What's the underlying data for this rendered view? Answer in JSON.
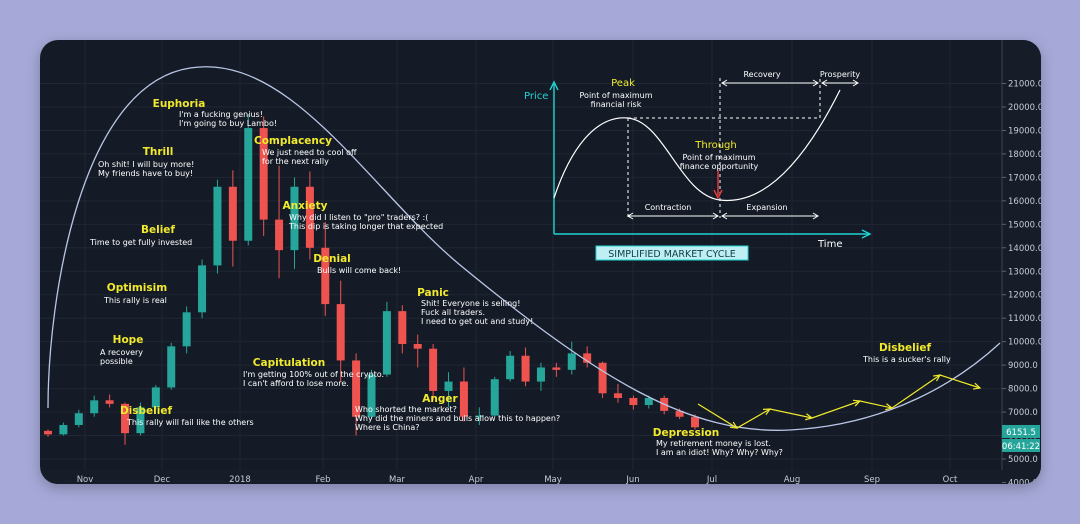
{
  "chart_data": {
    "type": "candlestick",
    "x_ticks": [
      "Nov",
      "Dec",
      "2018",
      "Feb",
      "Mar",
      "Apr",
      "May",
      "Jun",
      "Jul",
      "Aug",
      "Sep",
      "Oct"
    ],
    "y_ticks": [
      "4000.0",
      "5000.0",
      "6000.0",
      "7000.0",
      "8000.0",
      "9000.0",
      "10000.0",
      "11000.0",
      "12000.0",
      "13000.0",
      "14000.0",
      "15000.0",
      "16000.0",
      "17000.0",
      "18000.0",
      "19000.0",
      "20000.0",
      "21000.0"
    ],
    "ylim": [
      3500,
      21500
    ],
    "series": [
      {
        "values": [
          [
            6200,
            6250,
            5950,
            6050
          ],
          [
            6050,
            6550,
            6000,
            6450
          ],
          [
            6450,
            7100,
            6350,
            6950
          ],
          [
            6950,
            7700,
            6800,
            7500
          ],
          [
            7500,
            7750,
            7200,
            7350
          ],
          [
            7350,
            7400,
            5600,
            6100
          ],
          [
            6100,
            7400,
            6000,
            7200
          ],
          [
            7200,
            8150,
            7100,
            8050
          ],
          [
            8050,
            9950,
            7950,
            9800
          ],
          [
            9800,
            11500,
            9500,
            11250
          ],
          [
            11250,
            13500,
            11000,
            13250
          ],
          [
            13250,
            16900,
            12900,
            16600
          ],
          [
            16600,
            17300,
            13200,
            14300
          ],
          [
            14300,
            19700,
            14100,
            19100
          ],
          [
            19100,
            19600,
            14500,
            15200
          ],
          [
            15200,
            17500,
            12700,
            13900
          ],
          [
            13900,
            17000,
            13100,
            16600
          ],
          [
            16600,
            17250,
            13500,
            14000
          ],
          [
            14000,
            15100,
            11100,
            11600
          ],
          [
            11600,
            12600,
            8300,
            9200
          ],
          [
            9200,
            9500,
            6000,
            6800
          ],
          [
            6800,
            8800,
            6700,
            8600
          ],
          [
            8600,
            11700,
            8500,
            11300
          ],
          [
            11300,
            11550,
            9500,
            9900
          ],
          [
            9900,
            10300,
            8900,
            9700
          ],
          [
            9700,
            9900,
            7500,
            7900
          ],
          [
            7900,
            8700,
            7200,
            8300
          ],
          [
            8300,
            8900,
            6600,
            6800
          ],
          [
            6800,
            7200,
            6450,
            6850
          ],
          [
            6850,
            8500,
            6800,
            8400
          ],
          [
            8400,
            9600,
            8300,
            9400
          ],
          [
            9400,
            9750,
            8100,
            8300
          ],
          [
            8300,
            9100,
            7900,
            8900
          ],
          [
            8900,
            9100,
            8500,
            8800
          ],
          [
            8800,
            10000,
            8600,
            9500
          ],
          [
            9500,
            9800,
            8900,
            9100
          ],
          [
            9100,
            9150,
            7600,
            7800
          ],
          [
            7800,
            8200,
            7400,
            7600
          ],
          [
            7600,
            7700,
            7100,
            7300
          ],
          [
            7300,
            7700,
            7150,
            7600
          ],
          [
            7600,
            7700,
            6900,
            7050
          ],
          [
            7050,
            7150,
            6700,
            6800
          ],
          [
            6800,
            6900,
            6250,
            6350
          ]
        ]
      }
    ],
    "y_value_tag": "6151.5",
    "time_tag": "06:41:22",
    "annotations": [
      {
        "title": "Euphoria",
        "lines": [
          "I'm a fucking genius!",
          "I'm going to buy Lambo!"
        ]
      },
      {
        "title": "Thrill",
        "lines": [
          "Oh shit! I will buy more!",
          "My friends have to buy!"
        ]
      },
      {
        "title": "Belief",
        "lines": [
          "Time to get fully invested"
        ]
      },
      {
        "title": "Optimisim",
        "lines": [
          "This rally is real"
        ]
      },
      {
        "title": "Hope",
        "lines": [
          "A recovery",
          "possible"
        ]
      },
      {
        "title": "Disbelief",
        "lines": [
          "This rally will fail like the others"
        ]
      },
      {
        "title": "Complacency",
        "lines": [
          "We just need to cool off",
          "for the next rally"
        ]
      },
      {
        "title": "Anxiety",
        "lines": [
          "Why did I listen to  \"pro\" traders? :(",
          "This dip is taking longer that expected"
        ]
      },
      {
        "title": "Denial",
        "lines": [
          "Bulls will come back!"
        ]
      },
      {
        "title": "Capitulation",
        "lines": [
          "I'm getting 100% out of the crypto.",
          "I can't afford to lose more."
        ]
      },
      {
        "title": "Panic",
        "lines": [
          "Shit! Everyone is selling!",
          "Fuck all traders.",
          "I need to get out and study!"
        ]
      },
      {
        "title": "Anger",
        "lines": [
          "Who shorted the market?",
          "Why did the miners and bulls allow this to happen?",
          "Where is China?"
        ]
      },
      {
        "title": "Depression",
        "lines": [
          "My retirement money is lost.",
          "I am an idiot! Why? Why? Why?"
        ]
      },
      {
        "title": "Disbelief",
        "lines": [
          "This is a sucker's rally"
        ]
      }
    ],
    "inset": {
      "title": "SIMPLIFIED MARKET CYCLE",
      "y_label": "Price",
      "x_label": "Time",
      "peak_title": "Peak",
      "peak_lines": [
        "Point of maximum",
        "financial risk"
      ],
      "trough_title": "Through",
      "trough_lines": [
        "Point of maximum",
        "finance opportunity"
      ],
      "recovery": "Recovery",
      "prosperity": "Prosperity",
      "contraction": "Contraction",
      "expansion": "Expansion"
    }
  },
  "colors": {
    "background": "#a6a9d8",
    "panel": "#141b26",
    "up_candle": "#26a69a",
    "down_candle": "#ef5350",
    "phase_text": "#f2ea2c",
    "curve": "#b9c6e6",
    "inset_accent": "#1fd3d3"
  }
}
